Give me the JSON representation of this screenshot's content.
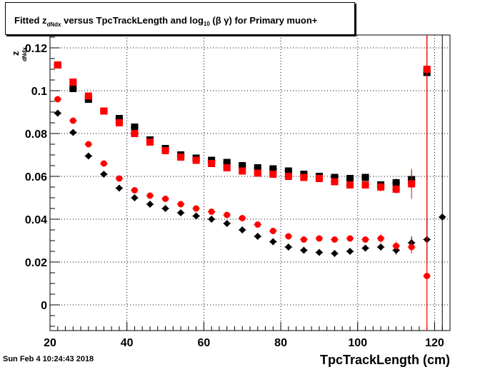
{
  "title": {
    "prefix": "Fitted  z",
    "sub1": "dNdx",
    "mid": "  versus TpcTrackLength and log",
    "sub2": "10",
    "suffix": " (β γ) for Primary muon+"
  },
  "timestamp": "Sun Feb  4 10:24:43 2018",
  "chart_data": {
    "type": "scatter",
    "title": "Fitted  z_dNdx  versus TpcTrackLength and log_10 (β γ) for Primary muon+",
    "xlabel": "TpcTrackLength (cm)",
    "ylabel": "z",
    "ylabel_sub": "dNdx",
    "xlim": [
      20,
      124
    ],
    "ylim": [
      -0.012,
      0.126
    ],
    "grid": true,
    "x_ticks": [
      20,
      40,
      60,
      80,
      100,
      120
    ],
    "x_tick_labels": [
      "20",
      "40",
      "60",
      "80",
      "100",
      "120"
    ],
    "y_ticks": [
      0,
      0.02,
      0.04,
      0.06,
      0.08,
      0.1,
      0.12
    ],
    "y_tick_labels": [
      "0",
      "0.02",
      "0.04",
      "0.06",
      "0.08",
      "0.1",
      "0.12"
    ],
    "series": [
      {
        "marker": "square",
        "color": "#000000",
        "x": [
          22,
          26,
          30,
          34,
          38,
          42,
          46,
          50,
          54,
          58,
          62,
          66,
          70,
          74,
          78,
          82,
          86,
          90,
          94,
          98,
          102,
          106,
          110,
          114,
          118
        ],
        "y": [
          0.112,
          0.101,
          0.096,
          0.0905,
          0.087,
          0.083,
          0.077,
          0.073,
          0.07,
          0.0685,
          0.0675,
          0.0665,
          0.065,
          0.064,
          0.0635,
          0.0625,
          0.061,
          0.06,
          0.0595,
          0.059,
          0.0595,
          0.056,
          0.057,
          0.0585,
          0.1085
        ],
        "yerr": [
          0,
          0,
          0,
          0,
          0,
          0,
          0,
          0,
          0,
          0,
          0,
          0,
          0,
          0,
          0,
          0,
          0,
          0,
          0,
          0.001,
          0.001,
          0.001,
          0.002,
          0.004,
          0.08
        ]
      },
      {
        "marker": "square",
        "color": "#ff0000",
        "x": [
          22,
          26,
          30,
          34,
          38,
          42,
          46,
          50,
          54,
          58,
          62,
          66,
          70,
          74,
          78,
          82,
          86,
          90,
          94,
          98,
          102,
          106,
          110,
          114,
          118
        ],
        "y": [
          0.112,
          0.104,
          0.0975,
          0.0905,
          0.085,
          0.08,
          0.076,
          0.072,
          0.069,
          0.0675,
          0.066,
          0.064,
          0.0625,
          0.0615,
          0.061,
          0.06,
          0.0595,
          0.059,
          0.0575,
          0.056,
          0.056,
          0.055,
          0.054,
          0.0565,
          0.11
        ],
        "yerr": [
          0,
          0,
          0,
          0,
          0,
          0,
          0,
          0,
          0,
          0,
          0,
          0,
          0,
          0,
          0,
          0,
          0,
          0,
          0,
          0.001,
          0.001,
          0.002,
          0.002,
          0.007,
          0.15
        ]
      },
      {
        "marker": "diamond",
        "color": "#000000",
        "x": [
          22,
          26,
          30,
          34,
          38,
          42,
          46,
          50,
          54,
          58,
          62,
          66,
          70,
          74,
          78,
          82,
          86,
          90,
          94,
          98,
          102,
          106,
          110,
          114,
          118,
          122
        ],
        "y": [
          0.0895,
          0.0805,
          0.0695,
          0.061,
          0.0545,
          0.05,
          0.047,
          0.045,
          0.043,
          0.0415,
          0.04,
          0.038,
          0.035,
          0.032,
          0.0295,
          0.027,
          0.0255,
          0.0245,
          0.024,
          0.025,
          0.0265,
          0.027,
          0.0255,
          0.029,
          0.0305,
          0.041
        ],
        "yerr": [
          0,
          0,
          0,
          0,
          0,
          0,
          0,
          0,
          0,
          0,
          0,
          0,
          0,
          0,
          0,
          0,
          0,
          0,
          0,
          0,
          0,
          0.001,
          0.002,
          0.003,
          0.01,
          0.15
        ]
      },
      {
        "marker": "circle",
        "color": "#ff0000",
        "x": [
          22,
          26,
          30,
          34,
          38,
          42,
          46,
          50,
          54,
          58,
          62,
          66,
          70,
          74,
          78,
          82,
          86,
          90,
          94,
          98,
          102,
          106,
          110,
          114,
          118
        ],
        "y": [
          0.096,
          0.086,
          0.075,
          0.066,
          0.059,
          0.0535,
          0.051,
          0.0495,
          0.047,
          0.045,
          0.0435,
          0.042,
          0.0405,
          0.0375,
          0.0345,
          0.032,
          0.0305,
          0.031,
          0.0305,
          0.031,
          0.0305,
          0.031,
          0.0275,
          0.027,
          0.0135
        ],
        "yerr": [
          0,
          0,
          0,
          0,
          0,
          0,
          0,
          0,
          0,
          0,
          0,
          0,
          0,
          0,
          0,
          0,
          0,
          0,
          0,
          0.001,
          0.001,
          0.002,
          0.002,
          0.003,
          0.15
        ]
      }
    ]
  }
}
